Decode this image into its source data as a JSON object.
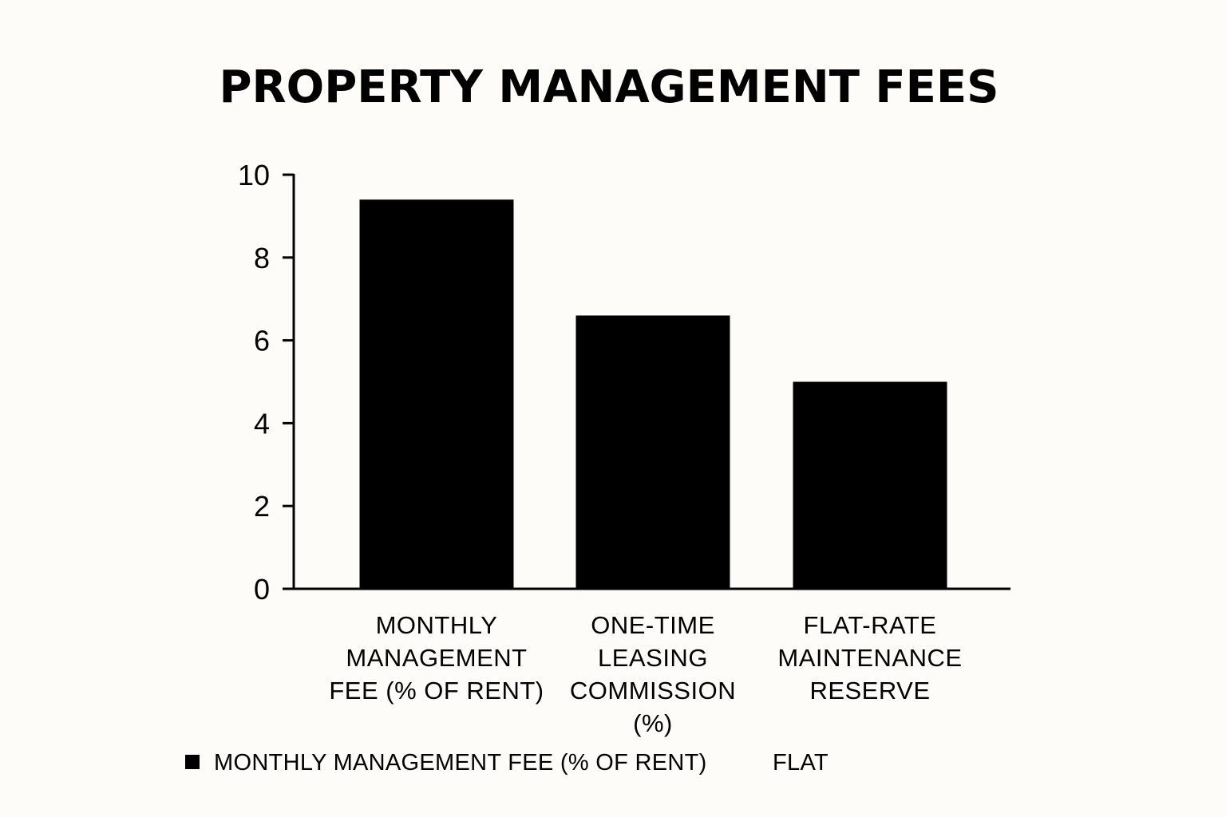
{
  "chart_data": {
    "type": "bar",
    "title": "PROPERTY MANAGEMENT FEES",
    "categories": [
      "MONTHLY MANAGEMENT FEE (% OF RENT)",
      "ONE-TIME LEASING COMMISSION (%)",
      "FLAT-RATE MAINTENANCE RESERVE"
    ],
    "category_lines": [
      [
        "MONTHLY",
        "MANAGEMENT",
        "FEE (% OF RENT)"
      ],
      [
        "ONE-TIME",
        "LEASING",
        "COMMISSION",
        "(%)"
      ],
      [
        "FLAT-RATE",
        "MAINTENANCE",
        "RESERVE"
      ]
    ],
    "values": [
      9.4,
      6.6,
      5.0
    ],
    "ylim": [
      0,
      10
    ],
    "yticks": [
      0,
      2,
      4,
      6,
      8,
      10
    ],
    "xlabel": "",
    "ylabel": "",
    "grid": false,
    "bar_color": "#000000",
    "legend": {
      "placement": "bottom",
      "entries": [
        {
          "label": "MONTHLY MANAGEMENT FEE (% OF RENT)",
          "marker": true
        },
        {
          "label": "FLAT",
          "marker": false
        }
      ]
    }
  }
}
